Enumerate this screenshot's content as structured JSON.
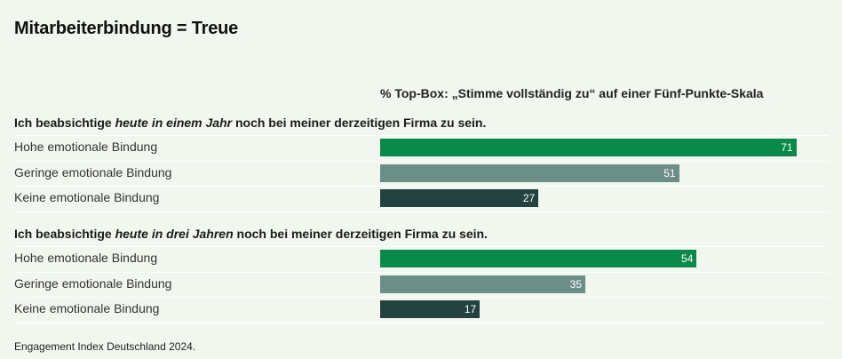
{
  "title": "Mitarbeiterbindung = Treue",
  "subtitle": "% Top-Box: „Stimme vollständig zu“ auf einer Fünf-Punkte-Skala",
  "groups": [
    {
      "head_pre": "Ich beabsichtige ",
      "head_em": "heute in einem Jahr",
      "head_post": " noch bei meiner derzeitigen Firma zu sein."
    },
    {
      "head_pre": "Ich beabsichtige ",
      "head_em": "heute in drei Jahren",
      "head_post": " noch bei meiner derzeitigen Firma zu sein."
    }
  ],
  "colors": {
    "hohe": "#0a8a4a",
    "geringe": "#6b8e87",
    "keine": "#22413f"
  },
  "chart_data": {
    "type": "bar",
    "orientation": "horizontal",
    "xlim": [
      0,
      100
    ],
    "series_labels": [
      "Hohe emotionale Bindung",
      "Geringe emotionale Bindung",
      "Keine emotionale Bindung"
    ],
    "groups": [
      {
        "rows": [
          {
            "label": "Hohe emotionale Bindung",
            "value": 71,
            "color_key": "hohe"
          },
          {
            "label": "Geringe emotionale Bindung",
            "value": 51,
            "color_key": "geringe"
          },
          {
            "label": "Keine emotionale Bindung",
            "value": 27,
            "color_key": "keine"
          }
        ]
      },
      {
        "rows": [
          {
            "label": "Hohe emotionale Bindung",
            "value": 54,
            "color_key": "hohe"
          },
          {
            "label": "Geringe emotionale Bindung",
            "value": 35,
            "color_key": "geringe"
          },
          {
            "label": "Keine emotionale Bindung",
            "value": 17,
            "color_key": "keine"
          }
        ]
      }
    ]
  },
  "footer": "Engagement Index Deutschland 2024."
}
